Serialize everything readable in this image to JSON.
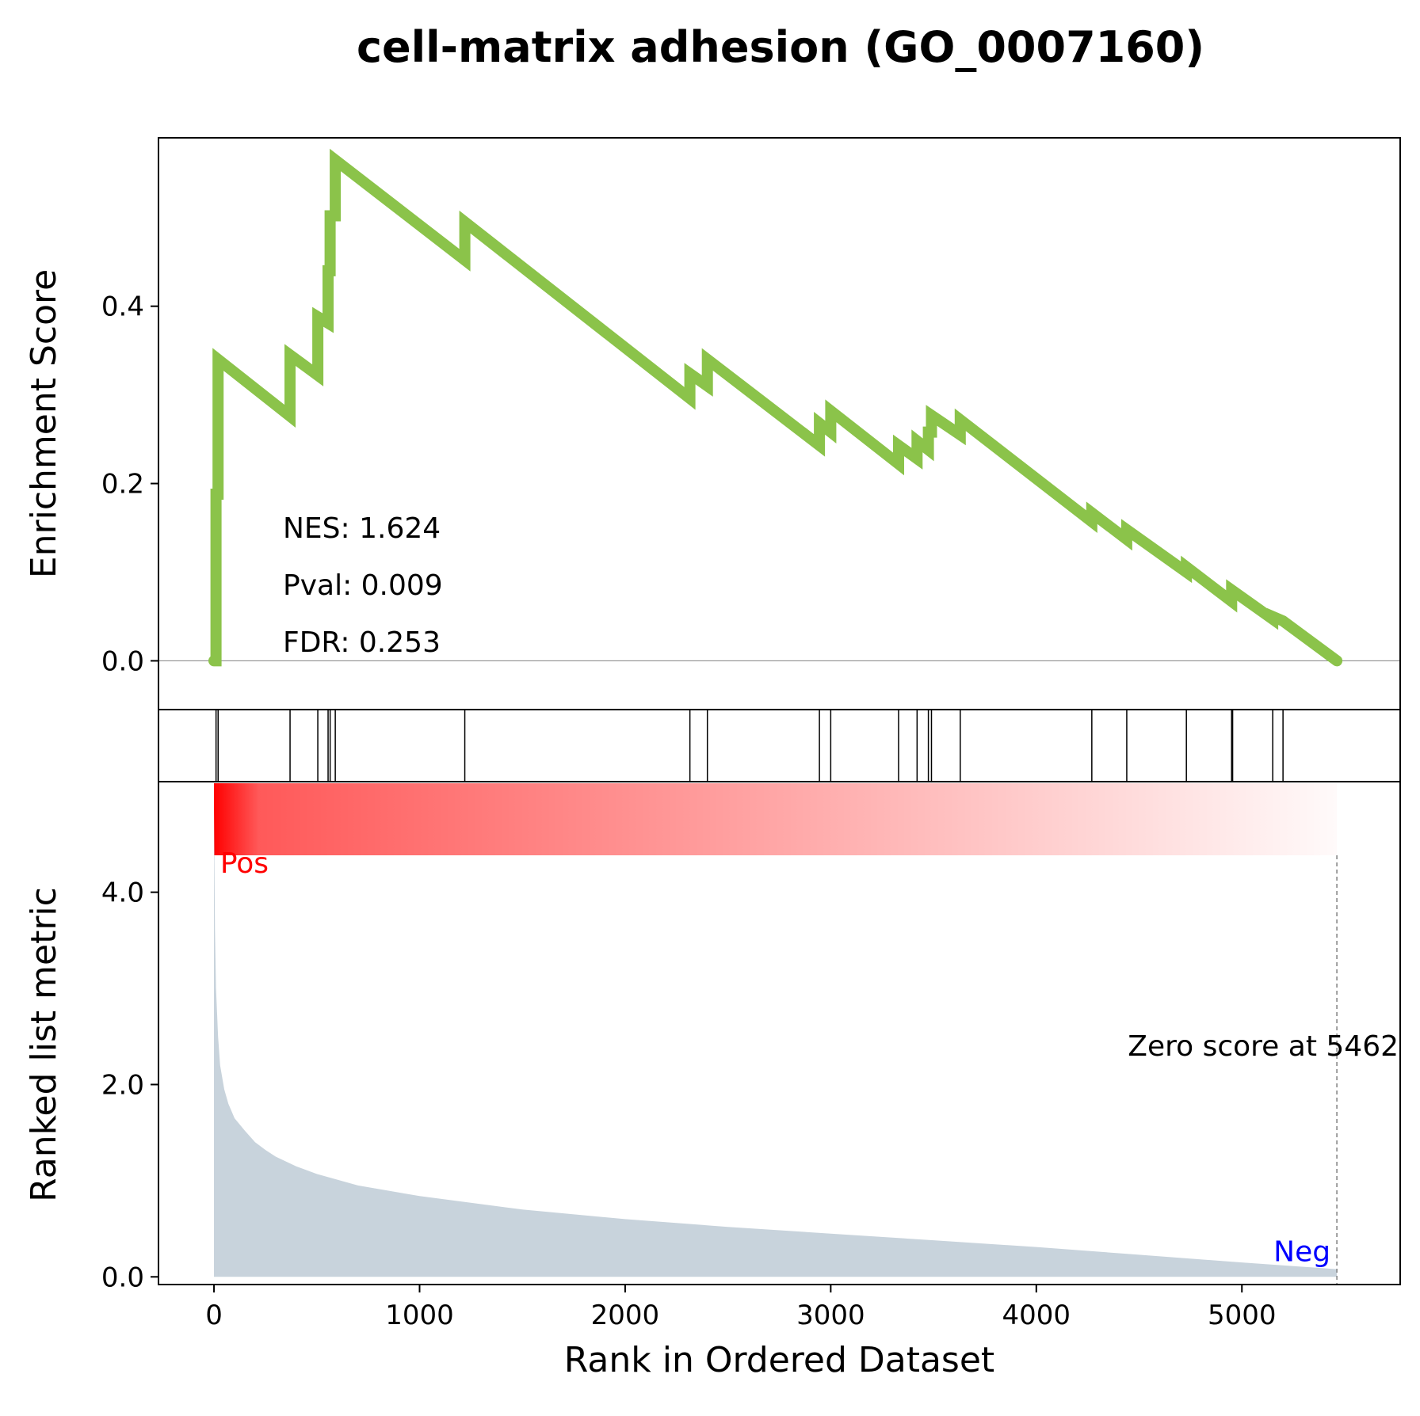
{
  "chart_data": {
    "type": "line",
    "title": "cell-matrix adhesion (GO_0007160)",
    "xlabel": "Rank in Ordered Dataset",
    "xlim": [
      -270,
      5770
    ],
    "xticks": [
      0,
      1000,
      2000,
      3000,
      4000,
      5000
    ],
    "enrichment": {
      "ylabel": "Enrichment Score",
      "ylim": [
        -0.055,
        0.59
      ],
      "yticks": [
        0.0,
        0.2,
        0.4
      ],
      "ytick_labels": [
        "0.0",
        "0.2",
        "0.4"
      ],
      "line_color": "#8bc34a",
      "x": [
        0,
        10,
        10,
        20,
        20,
        370,
        370,
        505,
        505,
        555,
        555,
        565,
        565,
        590,
        590,
        1220,
        1220,
        2315,
        2315,
        2400,
        2400,
        2945,
        2945,
        3000,
        3000,
        3330,
        3330,
        3420,
        3420,
        3475,
        3475,
        3490,
        3490,
        3630,
        3630,
        4270,
        4270,
        4440,
        4440,
        4730,
        4730,
        4950,
        4950,
        5150,
        5150,
        5200,
        5200,
        5462
      ],
      "y": [
        0,
        0,
        0.188,
        0.188,
        0.34,
        0.276,
        0.345,
        0.322,
        0.388,
        0.381,
        0.44,
        0.44,
        0.502,
        0.502,
        0.565,
        0.452,
        0.495,
        0.296,
        0.324,
        0.31,
        0.34,
        0.243,
        0.268,
        0.258,
        0.282,
        0.222,
        0.243,
        0.228,
        0.248,
        0.238,
        0.258,
        0.258,
        0.277,
        0.255,
        0.272,
        0.157,
        0.167,
        0.137,
        0.148,
        0.1,
        0.106,
        0.067,
        0.08,
        0.047,
        0.05,
        0.045,
        0.045,
        0
      ]
    },
    "stats": [
      {
        "label": "NES",
        "value": "1.624"
      },
      {
        "label": "Pval",
        "value": "0.009"
      },
      {
        "label": "FDR",
        "value": "0.253"
      }
    ],
    "hits": [
      10,
      20,
      370,
      505,
      555,
      565,
      590,
      1220,
      2315,
      2400,
      2945,
      3000,
      3330,
      3420,
      3475,
      3490,
      3630,
      4270,
      4440,
      4730,
      4950,
      4955,
      5150,
      5200
    ],
    "metric": {
      "ylabel": "Ranked list metric",
      "ylim": [
        -0.08,
        5.15
      ],
      "yticks": [
        0.0,
        2.0,
        4.0
      ],
      "ytick_labels": [
        "0.0",
        "2.0",
        "4.0"
      ],
      "fill_color": "#c8d3dc",
      "x": [
        0,
        5,
        10,
        20,
        30,
        50,
        70,
        100,
        150,
        200,
        250,
        300,
        400,
        500,
        700,
        1000,
        1500,
        2000,
        2500,
        3000,
        3500,
        4000,
        4500,
        5000,
        5462
      ],
      "y": [
        4.88,
        3.6,
        3.0,
        2.5,
        2.2,
        1.95,
        1.8,
        1.65,
        1.52,
        1.4,
        1.32,
        1.25,
        1.15,
        1.07,
        0.95,
        0.84,
        0.7,
        0.6,
        0.52,
        0.45,
        0.38,
        0.31,
        0.23,
        0.15,
        0.08
      ],
      "pos_label": "Pos",
      "neg_label": "Neg",
      "zero_score_text": "Zero score at 5462",
      "zero_score_rank": 5462
    },
    "gradient_bar": {
      "x_start": 0,
      "x_end": 5462,
      "from_color": "#ff0000",
      "to_color": "#ffffff"
    }
  }
}
